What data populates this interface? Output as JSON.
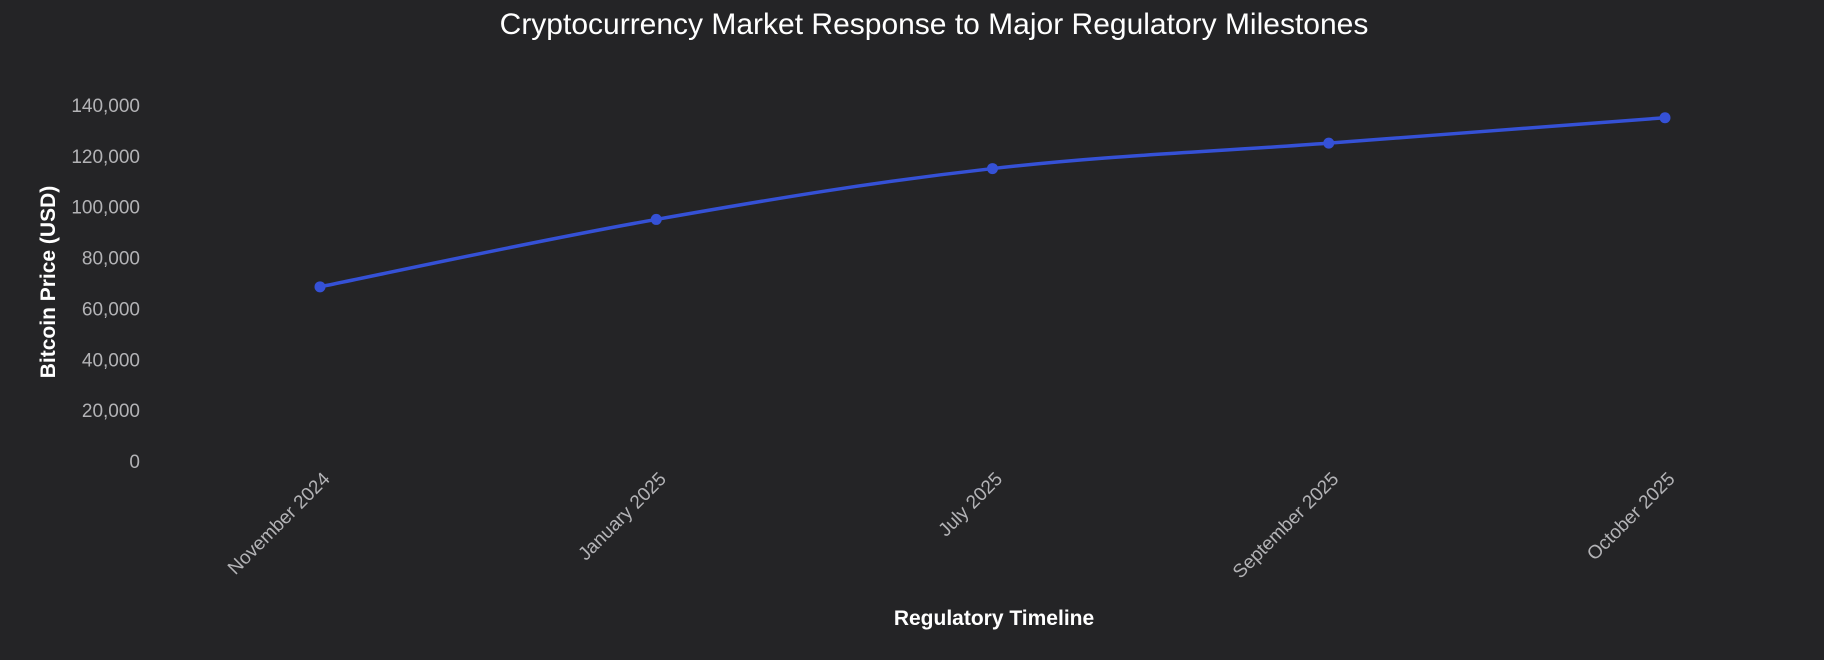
{
  "chart_data": {
    "type": "line",
    "title": "Cryptocurrency Market Response to Major Regulatory Milestones",
    "xlabel": "Regulatory Timeline",
    "ylabel": "Bitcoin Price (USD)",
    "categories": [
      "November 2024",
      "January 2025",
      "July 2025",
      "September 2025",
      "October 2025"
    ],
    "series": [
      {
        "values": [
          68500,
          95000,
          115000,
          125000,
          135000
        ]
      }
    ],
    "ylim": [
      0,
      140000
    ],
    "yticks": [
      0,
      20000,
      40000,
      60000,
      80000,
      100000,
      120000,
      140000
    ],
    "grid": false,
    "legend": "none",
    "colors": {
      "background": "#242426",
      "line": "#3551d6",
      "tick_text": "#b3b3b6",
      "title_text": "#ffffff"
    }
  }
}
